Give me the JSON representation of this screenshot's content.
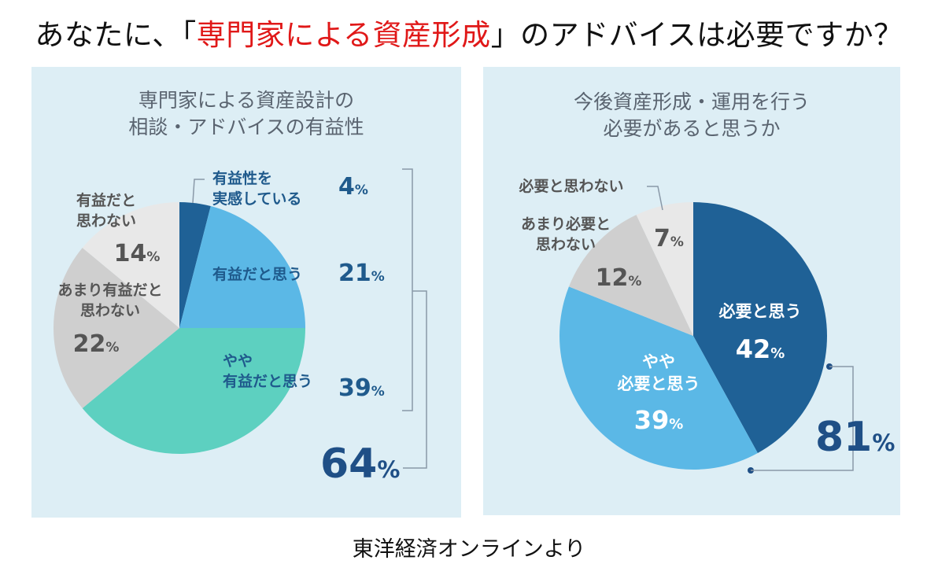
{
  "headline": {
    "before": "あなたに、「",
    "accent": "専門家による資産形成",
    "after": "」のアドバイスは必要ですか？",
    "accent_color": "#e01818"
  },
  "credit": "東洋経済オンラインより",
  "percent_sign": "%",
  "chart_data": [
    {
      "type": "pie",
      "title_lines": [
        "専門家による資産設計の",
        "相談・アドバイスの有益性"
      ],
      "categories": [
        "有益性を実感している",
        "有益だと思う",
        "やや有益だと思う",
        "あまり有益だと思わない",
        "有益だと思わない"
      ],
      "label_lines": [
        [
          "有益性を",
          "実感している"
        ],
        [
          "有益だと思う"
        ],
        [
          "やや",
          "有益だと思う"
        ],
        [
          "あまり有益だと",
          "思わない"
        ],
        [
          "有益だと",
          "思わない"
        ]
      ],
      "values": [
        4,
        21,
        39,
        22,
        14
      ],
      "colors": [
        "#1f6196",
        "#5bb8e6",
        "#5dd0c0",
        "#cfcfcf",
        "#e8e8e8"
      ],
      "total_label": {
        "value": 64,
        "includes": [
          "有益性を実感している",
          "有益だと思う",
          "やや有益だと思う"
        ]
      }
    },
    {
      "type": "pie",
      "title_lines": [
        "今後資産形成・運用を行う",
        "必要があると思うか"
      ],
      "categories": [
        "必要と思う",
        "やや必要と思う",
        "あまり必要と思わない",
        "必要と思わない"
      ],
      "label_lines": [
        [
          "必要と思う"
        ],
        [
          "やや",
          "必要と思う"
        ],
        [
          "あまり必要と",
          "思わない"
        ],
        [
          "必要と思わない"
        ]
      ],
      "values": [
        42,
        39,
        12,
        7
      ],
      "colors": [
        "#1f6196",
        "#5bb8e6",
        "#cfcfcf",
        "#e8e8e8"
      ],
      "total_label": {
        "value": 81,
        "includes": [
          "必要と思う",
          "やや必要と思う"
        ]
      }
    }
  ]
}
